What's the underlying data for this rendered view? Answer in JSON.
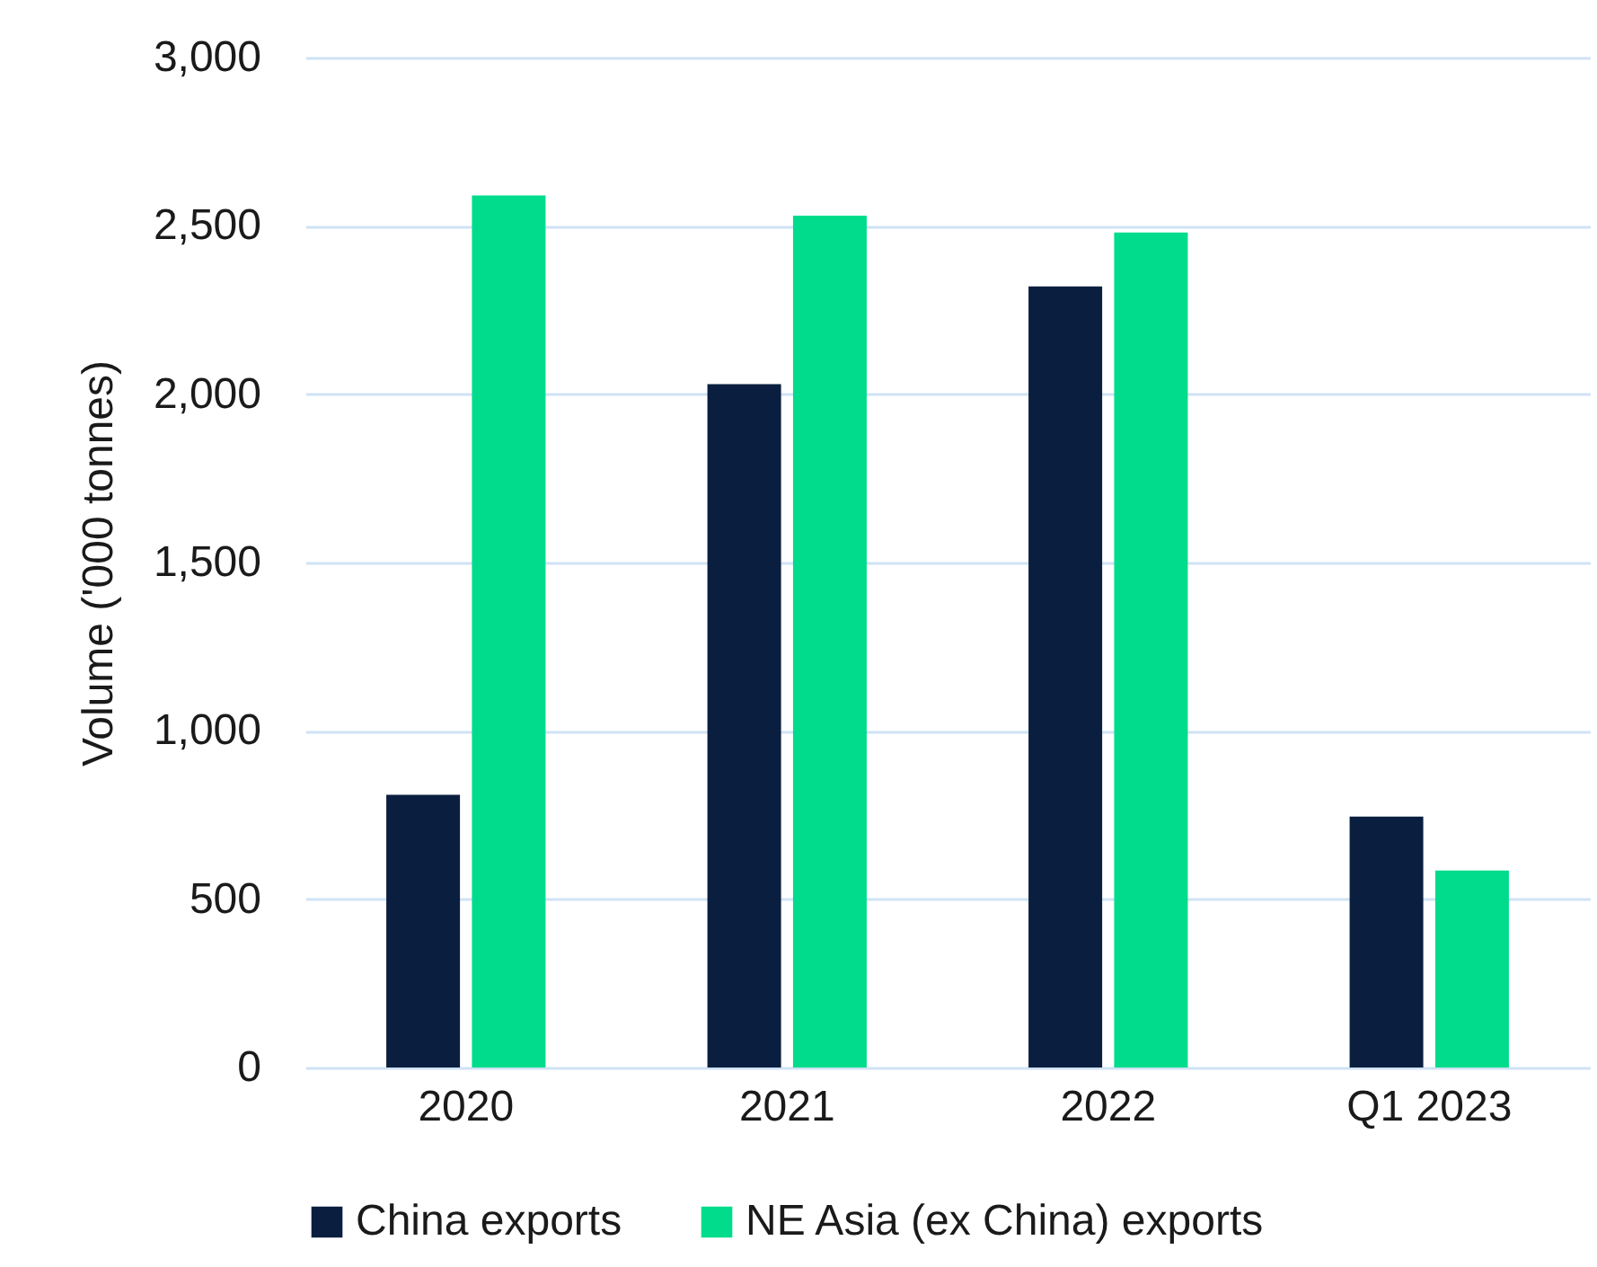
{
  "chart_data": {
    "type": "bar",
    "ylabel": "Volume ('000 tonnes)",
    "categories": [
      "2020",
      "2021",
      "2022",
      "Q1 2023"
    ],
    "series": [
      {
        "name": "China exports",
        "color": "#0a1f3f",
        "values": [
          810,
          2030,
          2320,
          745
        ]
      },
      {
        "name": "NE Asia (ex China) exports",
        "color": "#00dc8c",
        "values": [
          2590,
          2530,
          2480,
          585
        ]
      }
    ],
    "ylim": [
      0,
      3000
    ],
    "yticks": [
      0,
      500,
      {
        "value": 1000,
        "label": "1,000"
      },
      {
        "value": 1500,
        "label": "1,500"
      },
      {
        "value": 2000,
        "label": "2,000"
      },
      {
        "value": 2500,
        "label": "2,500"
      },
      {
        "value": 3000,
        "label": "3,000"
      }
    ],
    "grid": "y",
    "legend": "bottom"
  }
}
